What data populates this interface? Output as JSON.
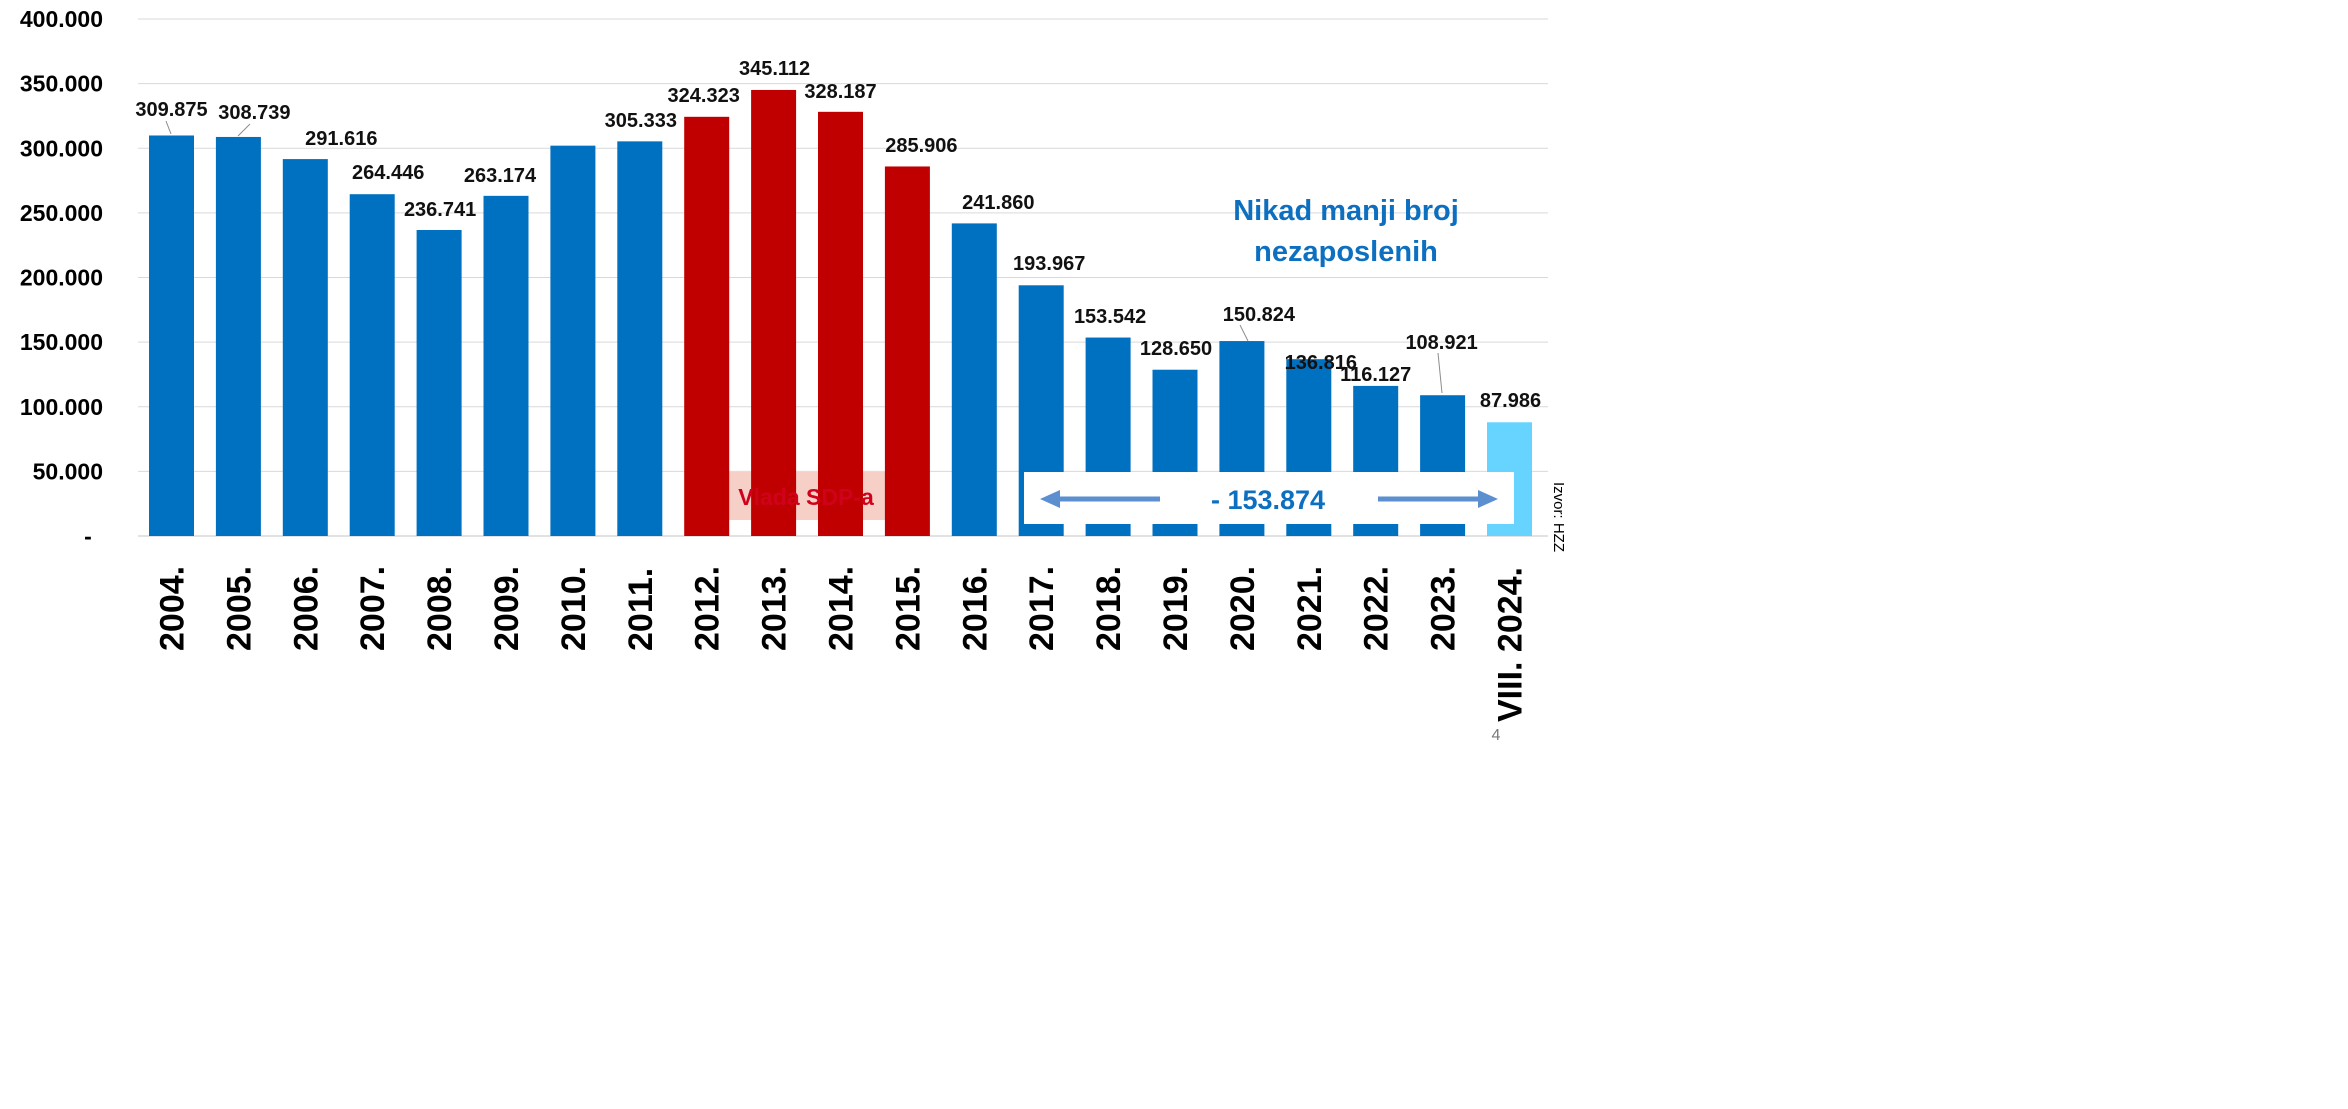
{
  "chart_data": {
    "type": "bar",
    "categories": [
      "2004.",
      "2005.",
      "2006.",
      "2007.",
      "2008.",
      "2009.",
      "2010.",
      "2011.",
      "2012.",
      "2013.",
      "2014.",
      "2015.",
      "2016.",
      "2017.",
      "2018.",
      "2019.",
      "2020.",
      "2021.",
      "2022.",
      "2023.",
      "2024."
    ],
    "category_prefix_last": "VIII.",
    "values": [
      309875,
      308739,
      291616,
      264446,
      236741,
      263174,
      302000,
      305333,
      324323,
      345112,
      328187,
      285906,
      241860,
      193967,
      153542,
      128650,
      150824,
      136816,
      116127,
      108921,
      87986
    ],
    "data_labels": [
      "309.875",
      "308.739",
      "291.616",
      "264.446",
      "236.741",
      "263.174",
      "",
      "305.333",
      "324.323",
      "345.112",
      "328.187",
      "285.906",
      "241.860",
      "193.967",
      "153.542",
      "128.650",
      "150.824",
      "136.816",
      "116.127",
      "108.921",
      "87.986"
    ],
    "bar_colors": [
      "#0070c0",
      "#0070c0",
      "#0070c0",
      "#0070c0",
      "#0070c0",
      "#0070c0",
      "#0070c0",
      "#0070c0",
      "#c00000",
      "#c00000",
      "#c00000",
      "#c00000",
      "#0070c0",
      "#0070c0",
      "#0070c0",
      "#0070c0",
      "#0070c0",
      "#0070c0",
      "#0070c0",
      "#0070c0",
      "#66d4ff"
    ],
    "ylim": [
      0,
      400000
    ],
    "yticks": [
      {
        "value": 400000,
        "label": "400.000"
      },
      {
        "value": 350000,
        "label": "350.000"
      },
      {
        "value": 300000,
        "label": "300.000"
      },
      {
        "value": 250000,
        "label": "250.000"
      },
      {
        "value": 200000,
        "label": "200.000"
      },
      {
        "value": 150000,
        "label": "150.000"
      },
      {
        "value": 100000,
        "label": "100.000"
      },
      {
        "value": 50000,
        "label": "50.000"
      },
      {
        "value": 0,
        "label": "-"
      }
    ],
    "grid": true,
    "title": "",
    "xlabel": "",
    "ylabel": ""
  },
  "annotations": {
    "headline_line1": "Nikad manji broj",
    "headline_line2": "nezaposlenih",
    "government_label": "Vlada SDP-a",
    "difference_label": "- 153.874",
    "source_label": "Izvor: HZZ",
    "page_number": "4"
  },
  "colors": {
    "bar_default": "#0070c0",
    "bar_government": "#c00000",
    "bar_current": "#66d4ff",
    "headline": "#0c6fbf",
    "government_box": "#f4c7bd",
    "government_text": "#d0021b",
    "arrow": "#5b8fd0"
  }
}
